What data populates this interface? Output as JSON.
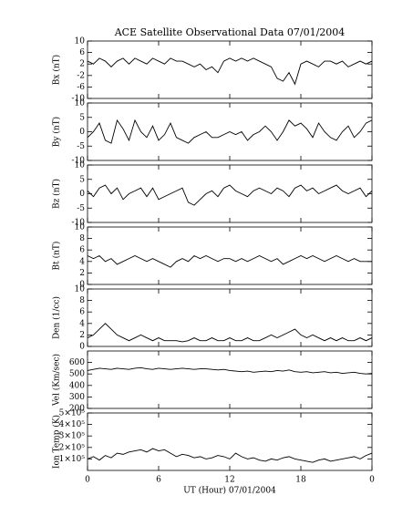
{
  "chart_data": [
    {
      "type": "line",
      "title": "ACE Satellite Observational Data   07/01/2004",
      "ylabel": "Bx (nT)",
      "color": "#000000",
      "ylim": [
        -10,
        10
      ],
      "yticks": [
        -10,
        -6,
        -2,
        2,
        6,
        10
      ],
      "x": [
        0,
        0.5,
        1,
        1.5,
        2,
        2.5,
        3,
        3.5,
        4,
        4.5,
        5,
        5.5,
        6,
        6.5,
        7,
        7.5,
        8,
        8.5,
        9,
        9.5,
        10,
        10.5,
        11,
        11.5,
        12,
        12.5,
        13,
        13.5,
        14,
        14.5,
        15,
        15.5,
        16,
        16.5,
        17,
        17.5,
        18,
        18.5,
        19,
        19.5,
        20,
        20.5,
        21,
        21.5,
        22,
        22.5,
        23,
        23.5,
        24
      ],
      "values": [
        3,
        2,
        4,
        3,
        1,
        3,
        4,
        2,
        4,
        3,
        2,
        4,
        3,
        2,
        4,
        3,
        3,
        2,
        1,
        2,
        0,
        1,
        -1,
        3,
        4,
        3,
        4,
        3,
        4,
        3,
        2,
        1,
        -3,
        -4,
        -1,
        -5,
        2,
        3,
        2,
        1,
        3,
        3,
        2,
        3,
        1,
        2,
        3,
        2,
        3
      ]
    },
    {
      "type": "line",
      "ylabel": "By (nT)",
      "color": "#000000",
      "ylim": [
        -10,
        10
      ],
      "yticks": [
        -10,
        -5,
        0,
        5,
        10
      ],
      "x": [
        0,
        0.5,
        1,
        1.5,
        2,
        2.5,
        3,
        3.5,
        4,
        4.5,
        5,
        5.5,
        6,
        6.5,
        7,
        7.5,
        8,
        8.5,
        9,
        9.5,
        10,
        10.5,
        11,
        11.5,
        12,
        12.5,
        13,
        13.5,
        14,
        14.5,
        15,
        15.5,
        16,
        16.5,
        17,
        17.5,
        18,
        18.5,
        19,
        19.5,
        20,
        20.5,
        21,
        21.5,
        22,
        22.5,
        23,
        23.5,
        24
      ],
      "values": [
        -2,
        0,
        3,
        -3,
        -4,
        4,
        1,
        -3,
        4,
        0,
        -2,
        2,
        -3,
        -1,
        3,
        -2,
        -3,
        -4,
        -2,
        -1,
        0,
        -2,
        -2,
        -1,
        0,
        -1,
        0,
        -3,
        -1,
        0,
        2,
        0,
        -3,
        0,
        4,
        2,
        3,
        1,
        -2,
        3,
        0,
        -2,
        -3,
        0,
        2,
        -2,
        0,
        3,
        4
      ]
    },
    {
      "type": "line",
      "ylabel": "Bz (nT)",
      "color": "#000000",
      "ylim": [
        -10,
        10
      ],
      "yticks": [
        -10,
        -5,
        0,
        5,
        10
      ],
      "x": [
        0,
        0.5,
        1,
        1.5,
        2,
        2.5,
        3,
        3.5,
        4,
        4.5,
        5,
        5.5,
        6,
        6.5,
        7,
        7.5,
        8,
        8.5,
        9,
        9.5,
        10,
        10.5,
        11,
        11.5,
        12,
        12.5,
        13,
        13.5,
        14,
        14.5,
        15,
        15.5,
        16,
        16.5,
        17,
        17.5,
        18,
        18.5,
        19,
        19.5,
        20,
        20.5,
        21,
        21.5,
        22,
        22.5,
        23,
        23.5,
        24
      ],
      "values": [
        1,
        -1,
        2,
        3,
        0,
        2,
        -2,
        0,
        1,
        2,
        -1,
        2,
        -2,
        -1,
        0,
        1,
        2,
        -3,
        -4,
        -2,
        0,
        1,
        -1,
        2,
        3,
        1,
        0,
        -1,
        1,
        2,
        1,
        0,
        2,
        1,
        -1,
        2,
        3,
        1,
        2,
        0,
        1,
        2,
        3,
        1,
        0,
        1,
        2,
        -1,
        1
      ]
    },
    {
      "type": "line",
      "ylabel": "Bt (nT)",
      "color": "#000000",
      "ylim": [
        0,
        10
      ],
      "yticks": [
        0,
        2,
        4,
        6,
        8,
        10
      ],
      "x": [
        0,
        0.5,
        1,
        1.5,
        2,
        2.5,
        3,
        3.5,
        4,
        4.5,
        5,
        5.5,
        6,
        6.5,
        7,
        7.5,
        8,
        8.5,
        9,
        9.5,
        10,
        10.5,
        11,
        11.5,
        12,
        12.5,
        13,
        13.5,
        14,
        14.5,
        15,
        15.5,
        16,
        16.5,
        17,
        17.5,
        18,
        18.5,
        19,
        19.5,
        20,
        20.5,
        21,
        21.5,
        22,
        22.5,
        23,
        23.5,
        24
      ],
      "values": [
        5,
        4.5,
        5,
        4,
        4.5,
        3.5,
        4,
        4.5,
        5,
        4.5,
        4,
        4.5,
        4,
        3.5,
        3,
        4,
        4.5,
        4,
        5,
        4.5,
        5,
        4.5,
        4,
        4.5,
        4.5,
        4,
        4.5,
        4,
        4.5,
        5,
        4.5,
        4,
        4.5,
        3.5,
        4,
        4.5,
        5,
        4.5,
        5,
        4.5,
        4,
        4.5,
        5,
        4.5,
        4,
        4.5,
        4,
        4,
        4
      ]
    },
    {
      "type": "line",
      "ylabel": "Den (1/cc)",
      "color": "#000000",
      "ylim": [
        0,
        10
      ],
      "yticks": [
        0,
        2,
        4,
        6,
        8,
        10
      ],
      "x": [
        0,
        0.5,
        1,
        1.5,
        2,
        2.5,
        3,
        3.5,
        4,
        4.5,
        5,
        5.5,
        6,
        6.5,
        7,
        7.5,
        8,
        8.5,
        9,
        9.5,
        10,
        10.5,
        11,
        11.5,
        12,
        12.5,
        13,
        13.5,
        14,
        14.5,
        15,
        15.5,
        16,
        16.5,
        17,
        17.5,
        18,
        18.5,
        19,
        19.5,
        20,
        20.5,
        21,
        21.5,
        22,
        22.5,
        23,
        23.5,
        24
      ],
      "values": [
        1.5,
        2,
        3,
        4,
        3,
        2,
        1.5,
        1,
        1.5,
        2,
        1.5,
        1,
        1.5,
        1,
        1,
        1,
        0.8,
        1,
        1.5,
        1,
        1,
        1.5,
        1,
        1,
        1.5,
        1,
        1,
        1.5,
        1,
        1,
        1.5,
        2,
        1.5,
        2,
        2.5,
        3,
        2,
        1.5,
        2,
        1.5,
        1,
        1.5,
        1,
        1.5,
        1,
        1,
        1.5,
        1,
        1.5
      ]
    },
    {
      "type": "line",
      "ylabel": "Vel (Km/sec)",
      "color": "#000000",
      "ylim": [
        200,
        700
      ],
      "yticks": [
        200,
        300,
        400,
        500,
        600
      ],
      "x": [
        0,
        0.5,
        1,
        1.5,
        2,
        2.5,
        3,
        3.5,
        4,
        4.5,
        5,
        5.5,
        6,
        6.5,
        7,
        7.5,
        8,
        8.5,
        9,
        9.5,
        10,
        10.5,
        11,
        11.5,
        12,
        12.5,
        13,
        13.5,
        14,
        14.5,
        15,
        15.5,
        16,
        16.5,
        17,
        17.5,
        18,
        18.5,
        19,
        19.5,
        20,
        20.5,
        21,
        21.5,
        22,
        22.5,
        23,
        23.5,
        24
      ],
      "values": [
        530,
        540,
        550,
        545,
        540,
        550,
        545,
        540,
        550,
        555,
        545,
        540,
        550,
        545,
        540,
        545,
        550,
        545,
        540,
        545,
        545,
        540,
        535,
        540,
        530,
        525,
        520,
        525,
        515,
        520,
        525,
        520,
        530,
        525,
        535,
        520,
        515,
        520,
        510,
        515,
        520,
        510,
        515,
        505,
        510,
        515,
        505,
        500,
        505
      ]
    },
    {
      "type": "line",
      "ylabel": "Ion Temp (K)",
      "color": "#000000",
      "ylim": [
        0,
        500000
      ],
      "yticks": [
        {
          "value": 100000,
          "label": "1×10⁵"
        },
        {
          "value": 200000,
          "label": "2×10⁵"
        },
        {
          "value": 300000,
          "label": "3×10⁵"
        },
        {
          "value": 400000,
          "label": "4×10⁵"
        },
        {
          "value": 500000,
          "label": "5×10⁵"
        }
      ],
      "xlabel": "UT (Hour)   07/01/2004",
      "xlim": [
        0,
        24
      ],
      "xticks": [
        0,
        6,
        12,
        18,
        {
          "value": 24,
          "label": "0"
        }
      ],
      "x": [
        0,
        0.5,
        1,
        1.5,
        2,
        2.5,
        3,
        3.5,
        4,
        4.5,
        5,
        5.5,
        6,
        6.5,
        7,
        7.5,
        8,
        8.5,
        9,
        9.5,
        10,
        10.5,
        11,
        11.5,
        12,
        12.5,
        13,
        13.5,
        14,
        14.5,
        15,
        15.5,
        16,
        16.5,
        17,
        17.5,
        18,
        18.5,
        19,
        19.5,
        20,
        20.5,
        21,
        21.5,
        22,
        22.5,
        23,
        23.5,
        24
      ],
      "values": [
        100000,
        120000,
        90000,
        130000,
        110000,
        150000,
        140000,
        160000,
        170000,
        180000,
        160000,
        190000,
        170000,
        180000,
        150000,
        120000,
        140000,
        130000,
        110000,
        120000,
        100000,
        110000,
        130000,
        120000,
        100000,
        150000,
        120000,
        100000,
        110000,
        90000,
        80000,
        100000,
        90000,
        110000,
        120000,
        100000,
        90000,
        80000,
        70000,
        90000,
        100000,
        80000,
        90000,
        100000,
        110000,
        120000,
        100000,
        130000,
        150000
      ]
    }
  ]
}
